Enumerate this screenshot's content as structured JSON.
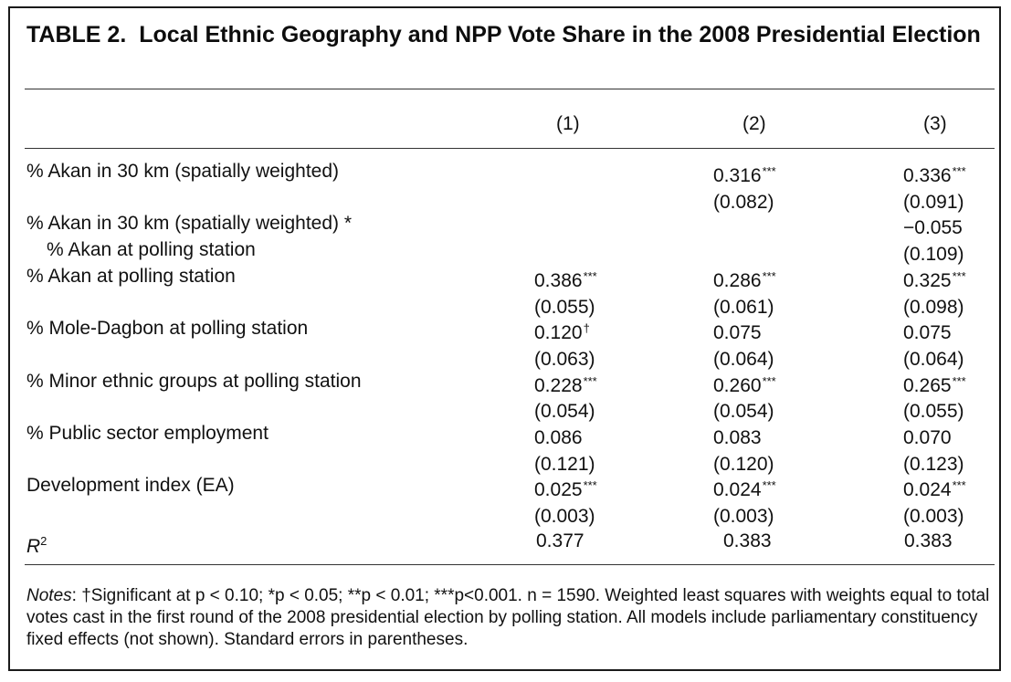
{
  "table": {
    "label": "TABLE 2.",
    "title": "Local Ethnic Geography and NPP Vote Share in the 2008 Presidential Election",
    "columns": [
      "(1)",
      "(2)",
      "(3)"
    ],
    "rows": [
      {
        "label": "% Akan in 30 km (spatially weighted)",
        "cells": [
          {
            "v": "",
            "s": ""
          },
          {
            "v": "0.316",
            "s": "***"
          },
          {
            "v": "0.336",
            "s": "***"
          }
        ]
      },
      {
        "label": "",
        "cells": [
          {
            "v": "",
            "s": ""
          },
          {
            "v": "(0.082)",
            "s": ""
          },
          {
            "v": "(0.091)",
            "s": ""
          }
        ]
      },
      {
        "label": "% Akan in 30 km (spatially weighted) *",
        "cells": [
          {
            "v": "",
            "s": ""
          },
          {
            "v": "",
            "s": ""
          },
          {
            "v": "−0.055",
            "s": ""
          }
        ]
      },
      {
        "label": "% Akan at polling station",
        "cells": [
          {
            "v": "",
            "s": ""
          },
          {
            "v": "",
            "s": ""
          },
          {
            "v": "(0.109)",
            "s": ""
          }
        ]
      },
      {
        "label": "% Akan at polling station",
        "cells": [
          {
            "v": "0.386",
            "s": "***"
          },
          {
            "v": "0.286",
            "s": "***"
          },
          {
            "v": "0.325",
            "s": "***"
          }
        ]
      },
      {
        "label": "",
        "cells": [
          {
            "v": "(0.055)",
            "s": ""
          },
          {
            "v": "(0.061)",
            "s": ""
          },
          {
            "v": "(0.098)",
            "s": ""
          }
        ]
      },
      {
        "label": "% Mole-Dagbon at polling station",
        "cells": [
          {
            "v": "0.120",
            "s": "†"
          },
          {
            "v": "0.075",
            "s": ""
          },
          {
            "v": "0.075",
            "s": ""
          }
        ]
      },
      {
        "label": "",
        "cells": [
          {
            "v": "(0.063)",
            "s": ""
          },
          {
            "v": "(0.064)",
            "s": ""
          },
          {
            "v": "(0.064)",
            "s": ""
          }
        ]
      },
      {
        "label": "% Minor ethnic groups at polling station",
        "cells": [
          {
            "v": "0.228",
            "s": "***"
          },
          {
            "v": "0.260",
            "s": "***"
          },
          {
            "v": "0.265",
            "s": "***"
          }
        ]
      },
      {
        "label": "",
        "cells": [
          {
            "v": "(0.054)",
            "s": ""
          },
          {
            "v": "(0.054)",
            "s": ""
          },
          {
            "v": "(0.055)",
            "s": ""
          }
        ]
      },
      {
        "label": "% Public sector employment",
        "cells": [
          {
            "v": "0.086",
            "s": ""
          },
          {
            "v": "0.083",
            "s": ""
          },
          {
            "v": "0.070",
            "s": ""
          }
        ]
      },
      {
        "label": "",
        "cells": [
          {
            "v": "(0.121)",
            "s": ""
          },
          {
            "v": "(0.120)",
            "s": ""
          },
          {
            "v": "(0.123)",
            "s": ""
          }
        ]
      },
      {
        "label": "Development index (EA)",
        "cells": [
          {
            "v": "0.025",
            "s": "***"
          },
          {
            "v": "0.024",
            "s": "***"
          },
          {
            "v": "0.024",
            "s": "***"
          }
        ]
      },
      {
        "label": "",
        "cells": [
          {
            "v": "(0.003)",
            "s": ""
          },
          {
            "v": "(0.003)",
            "s": ""
          },
          {
            "v": "(0.003)",
            "s": ""
          }
        ]
      }
    ],
    "r2": {
      "label_base": "R",
      "label_sup": "2",
      "values": [
        "0.377",
        "0.383",
        "0.383"
      ]
    },
    "notes": {
      "lead": "Notes",
      "text": ": †Significant at p < 0.10; *p < 0.05; **p < 0.01; ***p<0.001. n = 1590. Weighted least squares with weights equal to total votes cast in the first round of the 2008 presidential election by polling station. All models include parliamentary constituency fixed effects (not shown). Standard errors in parentheses."
    }
  }
}
